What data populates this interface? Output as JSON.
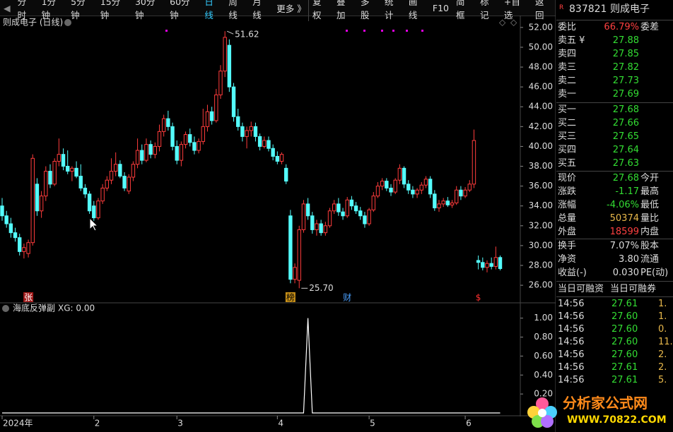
{
  "toolbar": [
    "分时",
    "1分钟",
    "5分钟",
    "15分钟",
    "30分钟",
    "60分钟",
    "日线",
    "周线",
    "月线",
    "更多 》",
    "复权",
    "叠加",
    "多股",
    "统计",
    "画线",
    "F10",
    "简框",
    "标记",
    "+自选",
    "返回"
  ],
  "toolbar_active": 6,
  "chart_data": {
    "type": "candlestick",
    "title": "则成电子 (日线)",
    "up_color": "#ff3c3c",
    "down_color": "#54fcfc",
    "ylim": [
      24.3,
      53.2
    ],
    "yticks": [
      {
        "value": 26,
        "label": "26.00"
      },
      {
        "value": 28,
        "label": "28.00"
      },
      {
        "value": 30,
        "label": "30.00"
      },
      {
        "value": 32,
        "label": "32.00"
      },
      {
        "value": 34,
        "label": "34.00"
      },
      {
        "value": 36,
        "label": "36.00"
      },
      {
        "value": 38,
        "label": "38.00"
      },
      {
        "value": 40,
        "label": "40.00"
      },
      {
        "value": 42,
        "label": "42.00"
      },
      {
        "value": 44,
        "label": "44.00"
      },
      {
        "value": 46,
        "label": "46.00"
      },
      {
        "value": 48,
        "label": "48.00"
      },
      {
        "value": 50,
        "label": "50.00"
      },
      {
        "value": 52,
        "label": "52.00"
      }
    ],
    "candles": [
      [
        34,
        34.8,
        32.5,
        33
      ],
      [
        33,
        33.5,
        31.8,
        32.2
      ],
      [
        32.2,
        32.8,
        30.8,
        31.3
      ],
      [
        31.3,
        31.8,
        30.4,
        30.8
      ],
      [
        30.8,
        31.2,
        29,
        29.4
      ],
      [
        29.4,
        30.2,
        28.7,
        29.8
      ],
      [
        29.2,
        30.6,
        28.8,
        30.3
      ],
      [
        30.3,
        39.2,
        30,
        38.8
      ],
      [
        36.2,
        36.8,
        33,
        33.5
      ],
      [
        33.5,
        35.5,
        32.8,
        35
      ],
      [
        35,
        38,
        34.5,
        37.5
      ],
      [
        37.5,
        38.2,
        35.8,
        36.2
      ],
      [
        36.2,
        38.8,
        36,
        38.5
      ],
      [
        38.5,
        40.8,
        38,
        39.2
      ],
      [
        39.2,
        39.8,
        37.6,
        38
      ],
      [
        38,
        39.6,
        37.2,
        37.5
      ],
      [
        37.5,
        38,
        36.5,
        37.8
      ],
      [
        37.8,
        38.5,
        36.8,
        37
      ],
      [
        37,
        38.2,
        35.5,
        35.8
      ],
      [
        35.8,
        36.2,
        34.8,
        35.2
      ],
      [
        35.2,
        35.5,
        33.2,
        33.5
      ],
      [
        34,
        34.5,
        32.5,
        32.8
      ],
      [
        32.8,
        34.8,
        32.6,
        34.5
      ],
      [
        34.5,
        36.2,
        34.2,
        35.8
      ],
      [
        35.8,
        37,
        35.5,
        36.6
      ],
      [
        36.6,
        38.8,
        36.2,
        37.5
      ],
      [
        37.5,
        39.4,
        37,
        38.2
      ],
      [
        38.2,
        38.6,
        36.8,
        37
      ],
      [
        37,
        37.4,
        35.5,
        35.8
      ],
      [
        35.5,
        37.2,
        35.2,
        36.9
      ],
      [
        36.9,
        38.5,
        36.5,
        38.2
      ],
      [
        38.2,
        40.8,
        37.8,
        39.6
      ],
      [
        39.6,
        40.2,
        38.2,
        38.6
      ],
      [
        38.6,
        40.8,
        38.4,
        40.2
      ],
      [
        40.2,
        40.6,
        38.8,
        39.2
      ],
      [
        39.2,
        40.4,
        38.8,
        40
      ],
      [
        40,
        42.2,
        39.5,
        41.5
      ],
      [
        41.5,
        43.2,
        41,
        42.8
      ],
      [
        42.8,
        43.6,
        41.6,
        42
      ],
      [
        42,
        42.4,
        39.6,
        40
      ],
      [
        40,
        40.6,
        38.2,
        38.6
      ],
      [
        38.6,
        40.5,
        38,
        40.2
      ],
      [
        40.2,
        41.5,
        39.8,
        41.2
      ],
      [
        41.2,
        41.8,
        40,
        40.4
      ],
      [
        40.4,
        41,
        39.2,
        39.6
      ],
      [
        39.6,
        40.8,
        39.3,
        40.5
      ],
      [
        40.5,
        43.8,
        40.2,
        42
      ],
      [
        42,
        44.2,
        41.5,
        43.5
      ],
      [
        43.5,
        44,
        42.2,
        42.6
      ],
      [
        42.6,
        45.8,
        42.4,
        45.2
      ],
      [
        45.2,
        48.2,
        44.8,
        47.6
      ],
      [
        47.6,
        51.62,
        47,
        51
      ],
      [
        50.2,
        50.8,
        45.5,
        46
      ],
      [
        46,
        46.4,
        42.5,
        43
      ],
      [
        43,
        43.8,
        41.6,
        42
      ],
      [
        42,
        42.4,
        40.5,
        41
      ],
      [
        41,
        42,
        39.8,
        41.6
      ],
      [
        41.6,
        42.5,
        41,
        42
      ],
      [
        42,
        42.4,
        40.5,
        41
      ],
      [
        41,
        41.3,
        39.6,
        40
      ],
      [
        40,
        41,
        39.8,
        40.6
      ],
      [
        40.6,
        41,
        39.5,
        39.8
      ],
      [
        39.8,
        40.2,
        38.6,
        39
      ],
      [
        39,
        39.5,
        38.2,
        38.5
      ],
      [
        38.5,
        39.4,
        38.2,
        39.2
      ],
      [
        37.8,
        38.2,
        36.2,
        36.5
      ],
      [
        33,
        33.6,
        26.2,
        26.6
      ],
      [
        26.6,
        28.2,
        26.2,
        27.8
      ],
      [
        26.5,
        32,
        25.7,
        31.6
      ],
      [
        31.6,
        34.6,
        31.3,
        34.2
      ],
      [
        34.2,
        34.8,
        32.6,
        33
      ],
      [
        33,
        33.4,
        31.2,
        31.6
      ],
      [
        31.6,
        32.6,
        31,
        32.2
      ],
      [
        32.2,
        32.6,
        31,
        31.3
      ],
      [
        31.3,
        32.4,
        31,
        32
      ],
      [
        32,
        33.8,
        31.8,
        33.5
      ],
      [
        33.5,
        34.6,
        33.2,
        34.2
      ],
      [
        34.2,
        34.8,
        33,
        33.4
      ],
      [
        33.4,
        33.8,
        32.6,
        33
      ],
      [
        33,
        34.9,
        32.8,
        34.6
      ],
      [
        34.6,
        35,
        33.6,
        34
      ],
      [
        34,
        34.4,
        33.2,
        33.5
      ],
      [
        33.5,
        33.9,
        32.6,
        33
      ],
      [
        33,
        33.4,
        31.8,
        32.2
      ],
      [
        32.2,
        33.8,
        32,
        33.6
      ],
      [
        33.6,
        35.4,
        33.4,
        35
      ],
      [
        35,
        36.4,
        34.8,
        36
      ],
      [
        36,
        36.8,
        35.6,
        36.5
      ],
      [
        36.5,
        36.8,
        35.5,
        35.8
      ],
      [
        35.8,
        36.2,
        35,
        35.4
      ],
      [
        35.4,
        36.8,
        35.2,
        36.6
      ],
      [
        36.6,
        38.2,
        36.2,
        37.8
      ],
      [
        37.8,
        38,
        35.8,
        36.2
      ],
      [
        36.2,
        36.6,
        35.2,
        35.6
      ],
      [
        35.6,
        36,
        34.8,
        35.2
      ],
      [
        35.2,
        35.8,
        34.8,
        35.6
      ],
      [
        35.6,
        36.4,
        35.2,
        36.1
      ],
      [
        36.1,
        37,
        35.8,
        36.7
      ],
      [
        36.7,
        37,
        34.8,
        35.2
      ],
      [
        35.2,
        35.6,
        33.5,
        33.8
      ],
      [
        33.8,
        34.6,
        33.4,
        34.2
      ],
      [
        34.2,
        34.8,
        33.9,
        34.5
      ],
      [
        34.5,
        34.9,
        33.9,
        34.1
      ],
      [
        34.1,
        34.6,
        33.8,
        34.3
      ],
      [
        34.3,
        36,
        34.1,
        35.6
      ],
      [
        35.6,
        36,
        34.6,
        35
      ],
      [
        35,
        35.9,
        34.8,
        35.6
      ],
      [
        35.6,
        36.6,
        35.4,
        36.2
      ],
      [
        36.2,
        41.7,
        35.8,
        40.6
      ],
      [
        28.5,
        29,
        27.6,
        28.3
      ],
      [
        28.3,
        28.8,
        27.5,
        27.8
      ],
      [
        27.8,
        28.5,
        27.3,
        28.2
      ],
      [
        28.2,
        28.8,
        27.6,
        27.9
      ],
      [
        27.9,
        29.9,
        27.6,
        28.8
      ],
      [
        28.8,
        29,
        27.5,
        27.68
      ]
    ],
    "categories": [
      "2024年",
      null,
      null,
      null,
      null,
      null,
      null,
      null,
      null,
      null,
      null,
      null,
      null,
      null,
      null,
      null,
      null,
      null,
      null,
      null,
      null,
      "2",
      null,
      null,
      null,
      null,
      null,
      null,
      null,
      null,
      null,
      null,
      null,
      null,
      null,
      null,
      null,
      null,
      null,
      null,
      "3",
      null,
      null,
      null,
      null,
      null,
      null,
      null,
      null,
      null,
      null,
      null,
      null,
      null,
      null,
      null,
      null,
      null,
      null,
      null,
      null,
      null,
      null,
      "4",
      null,
      null,
      null,
      null,
      null,
      null,
      null,
      null,
      null,
      null,
      null,
      null,
      null,
      null,
      null,
      null,
      null,
      null,
      null,
      null,
      "5",
      null,
      null,
      null,
      null,
      null,
      null,
      null,
      null,
      null,
      null,
      null,
      null,
      null,
      null,
      null,
      null,
      null,
      null,
      null,
      null,
      null,
      "6",
      null,
      null,
      null,
      null,
      null,
      null,
      null,
      null
    ],
    "markers": [
      null,
      null,
      null,
      null,
      null,
      null,
      "张",
      null,
      null,
      null,
      null,
      null,
      null,
      null,
      null,
      null,
      null,
      null,
      null,
      null,
      null,
      null,
      null,
      null,
      null,
      null,
      null,
      null,
      null,
      null,
      null,
      null,
      null,
      null,
      null,
      null,
      null,
      null,
      null,
      null,
      null,
      null,
      null,
      null,
      null,
      null,
      null,
      null,
      null,
      null,
      null,
      null,
      null,
      null,
      null,
      null,
      null,
      null,
      null,
      null,
      null,
      null,
      null,
      null,
      null,
      null,
      "榜",
      null,
      null,
      null,
      null,
      null,
      null,
      null,
      null,
      null,
      null,
      null,
      null,
      "财",
      null,
      null,
      null,
      null,
      null,
      null,
      null,
      null,
      null,
      null,
      null,
      null,
      null,
      null,
      null,
      null,
      null,
      null,
      null,
      null,
      null,
      null,
      null,
      null,
      null,
      null,
      null,
      null,
      null,
      "$",
      null,
      null,
      null,
      null,
      null
    ],
    "annotations": [
      {
        "value": 51.62,
        "label": "51.62"
      },
      {
        "value": 25.7,
        "label": "25.70"
      }
    ]
  },
  "indicator": {
    "type": "line",
    "name": "海底反弹副",
    "label": "XG: 0.00",
    "color": "#ffffff",
    "ylim": [
      0,
      1.05
    ],
    "yticks": [
      {
        "value": 0.2,
        "label": "0.20"
      },
      {
        "value": 0.4,
        "label": "0.40"
      },
      {
        "value": 0.6,
        "label": "0.60"
      },
      {
        "value": 0.8,
        "label": "0.80"
      },
      {
        "value": 1,
        "label": "1.00"
      }
    ],
    "values": [
      0,
      0,
      0,
      0,
      0,
      0,
      0,
      0,
      0,
      0,
      0,
      0,
      0,
      0,
      0,
      0,
      0,
      0,
      0,
      0,
      0,
      0,
      0,
      0,
      0,
      0,
      0,
      0,
      0,
      0,
      0,
      0,
      0,
      0,
      0,
      0,
      0,
      0,
      0,
      0,
      0,
      0,
      0,
      0,
      0,
      0,
      0,
      0,
      0,
      0,
      0,
      0,
      0,
      0,
      0,
      0,
      0,
      0,
      0,
      0,
      0,
      0,
      0,
      0,
      0,
      0,
      0,
      0,
      0,
      0,
      1,
      0,
      0,
      0,
      0,
      0,
      0,
      0,
      0,
      0,
      0,
      0,
      0,
      0,
      0,
      0,
      0,
      0,
      0,
      0,
      0,
      0,
      0,
      0,
      0,
      0,
      0,
      0,
      0,
      0,
      0,
      0,
      0,
      0,
      0,
      0,
      0,
      0,
      0,
      0,
      0,
      0,
      0,
      0,
      0
    ]
  },
  "quote": {
    "badge": "R",
    "code": "837821",
    "name": "则成电子",
    "ratio": {
      "label": "委比",
      "value": "66.79%",
      "label2": "委差"
    },
    "asks": [
      {
        "label": "卖五 ¥",
        "price": 27.88
      },
      {
        "label": "卖四",
        "price": 27.85
      },
      {
        "label": "卖三",
        "price": 27.82
      },
      {
        "label": "卖二",
        "price": 27.73
      },
      {
        "label": "卖一",
        "price": 27.69
      }
    ],
    "bids": [
      {
        "label": "买一",
        "price": 27.68
      },
      {
        "label": "买二",
        "price": 27.66
      },
      {
        "label": "买三",
        "price": 27.65
      },
      {
        "label": "买四",
        "price": 27.64
      },
      {
        "label": "买五",
        "price": 27.63
      }
    ],
    "stats": [
      {
        "label": "现价",
        "value": "27.68",
        "label2": "今开",
        "color": "#33dd33"
      },
      {
        "label": "涨跌",
        "value": "-1.17",
        "label2": "最高",
        "color": "#33dd33"
      },
      {
        "label": "涨幅",
        "value": "-4.06%",
        "label2": "最低",
        "color": "#33dd33"
      },
      {
        "label": "总量",
        "value": "50374",
        "label2": "量比",
        "color": "#e8b84b"
      },
      {
        "label": "外盘",
        "value": "18599",
        "label2": "内盘",
        "color": "#ff4040"
      }
    ],
    "stats2": [
      {
        "label": "换手",
        "value": "7.07%",
        "label2": "股本",
        "color": "#dddddd"
      },
      {
        "label": "净资",
        "value": "3.80",
        "label2": "流通",
        "color": "#dddddd"
      },
      {
        "label": "收益(-)",
        "value": "0.030",
        "label2": "PE(动)",
        "color": "#dddddd"
      }
    ],
    "margin": [
      "当日可融资",
      "当日可融券"
    ],
    "trades": [
      [
        "14:56",
        "27.61",
        "1."
      ],
      [
        "14:56",
        "27.60",
        "1."
      ],
      [
        "14:56",
        "27.60",
        "0."
      ],
      [
        "14:56",
        "27.60",
        "11."
      ],
      [
        "14:56",
        "27.60",
        "2."
      ],
      [
        "14:56",
        "27.61",
        "2."
      ],
      [
        "14:56",
        "27.61",
        "5."
      ]
    ]
  },
  "watermark": {
    "title": "分析家公式网",
    "url": "WWW.70822.COM"
  }
}
